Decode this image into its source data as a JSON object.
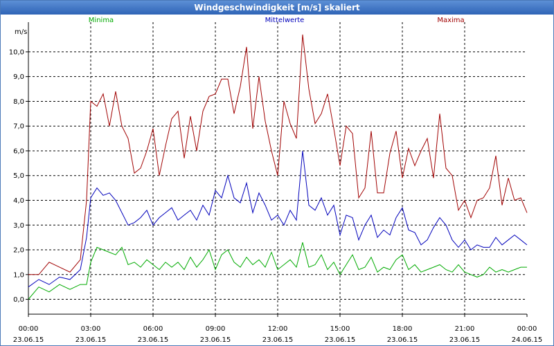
{
  "window": {
    "title": "Windgeschwindigkeit [m/s] skaliert"
  },
  "colors": {
    "min": "#00aa00",
    "avg": "#0000bb",
    "max": "#a00000",
    "grid": "#000000",
    "title_bg": "#2f64b6"
  },
  "chart_data": {
    "type": "line",
    "title": "Windgeschwindigkeit [m/s] skaliert",
    "ylabel": "m/s",
    "xlabel": "",
    "ylim": [
      -0.6,
      11.2
    ],
    "xlim": [
      0,
      24
    ],
    "y_ticks": [
      "0,0",
      "1,0",
      "2,0",
      "3,0",
      "4,0",
      "5,0",
      "6,0",
      "7,0",
      "8,0",
      "9,0",
      "10,0"
    ],
    "y_tick_values": [
      0,
      1,
      2,
      3,
      4,
      5,
      6,
      7,
      8,
      9,
      10
    ],
    "x_ticks": [
      {
        "time": "00:00",
        "date": "23.06.15",
        "hour": 0
      },
      {
        "time": "03:00",
        "date": "23.06.15",
        "hour": 3
      },
      {
        "time": "06:00",
        "date": "23.06.15",
        "hour": 6
      },
      {
        "time": "09:00",
        "date": "23.06.15",
        "hour": 9
      },
      {
        "time": "12:00",
        "date": "23.06.15",
        "hour": 12
      },
      {
        "time": "15:00",
        "date": "23.06.15",
        "hour": 15
      },
      {
        "time": "18:00",
        "date": "23.06.15",
        "hour": 18
      },
      {
        "time": "21:00",
        "date": "23.06.15",
        "hour": 21
      },
      {
        "time": "00:00",
        "date": "24.06.15",
        "hour": 24
      }
    ],
    "grid": true,
    "series": [
      {
        "name": "Minima",
        "key": "min",
        "x": [
          0,
          0.5,
          1,
          1.5,
          2,
          2.5,
          2.8,
          3,
          3.3,
          3.6,
          3.9,
          4.2,
          4.5,
          4.8,
          5.1,
          5.4,
          5.7,
          6,
          6.3,
          6.6,
          6.9,
          7.2,
          7.5,
          7.8,
          8.1,
          8.4,
          8.7,
          9,
          9.3,
          9.6,
          9.9,
          10.2,
          10.5,
          10.8,
          11.1,
          11.4,
          11.7,
          12,
          12.3,
          12.6,
          12.9,
          13.2,
          13.5,
          13.8,
          14.1,
          14.4,
          14.7,
          15,
          15.3,
          15.6,
          15.9,
          16.2,
          16.5,
          16.8,
          17.1,
          17.4,
          17.7,
          18,
          18.3,
          18.6,
          18.9,
          19.2,
          19.5,
          19.8,
          20.1,
          20.4,
          20.7,
          21,
          21.3,
          21.6,
          21.9,
          22.2,
          22.5,
          22.8,
          23.1,
          23.4,
          23.7,
          24
        ],
        "values": [
          0.0,
          0.5,
          0.3,
          0.6,
          0.4,
          0.6,
          0.6,
          1.5,
          2.1,
          2.0,
          1.9,
          1.8,
          2.1,
          1.4,
          1.5,
          1.3,
          1.6,
          1.4,
          1.2,
          1.5,
          1.3,
          1.5,
          1.2,
          1.7,
          1.3,
          1.6,
          2.0,
          1.2,
          1.8,
          2.0,
          1.5,
          1.3,
          1.7,
          1.4,
          1.6,
          1.3,
          1.9,
          1.2,
          1.4,
          1.6,
          1.3,
          2.3,
          1.3,
          1.4,
          1.8,
          1.2,
          1.5,
          1.0,
          1.4,
          1.8,
          1.2,
          1.3,
          1.7,
          1.1,
          1.3,
          1.2,
          1.6,
          1.8,
          1.2,
          1.4,
          1.1,
          1.2,
          1.3,
          1.4,
          1.2,
          1.1,
          1.4,
          1.1,
          1.0,
          0.9,
          1.0,
          1.3,
          1.1,
          1.2,
          1.1,
          1.2,
          1.3,
          1.3
        ]
      },
      {
        "name": "Mittelwerte",
        "key": "avg",
        "x": [
          0,
          0.5,
          1,
          1.5,
          2,
          2.5,
          2.8,
          3,
          3.3,
          3.6,
          3.9,
          4.2,
          4.5,
          4.8,
          5.1,
          5.4,
          5.7,
          6,
          6.3,
          6.6,
          6.9,
          7.2,
          7.5,
          7.8,
          8.1,
          8.4,
          8.7,
          9,
          9.3,
          9.6,
          9.9,
          10.2,
          10.5,
          10.8,
          11.1,
          11.4,
          11.7,
          12,
          12.3,
          12.6,
          12.9,
          13.2,
          13.5,
          13.8,
          14.1,
          14.4,
          14.7,
          15,
          15.3,
          15.6,
          15.9,
          16.2,
          16.5,
          16.8,
          17.1,
          17.4,
          17.7,
          18,
          18.3,
          18.6,
          18.9,
          19.2,
          19.5,
          19.8,
          20.1,
          20.4,
          20.7,
          21,
          21.3,
          21.6,
          21.9,
          22.2,
          22.5,
          22.8,
          23.1,
          23.4,
          23.7,
          24
        ],
        "values": [
          0.5,
          0.8,
          0.6,
          0.9,
          0.8,
          1.2,
          2.5,
          4.1,
          4.5,
          4.2,
          4.3,
          4.0,
          3.5,
          3.0,
          3.1,
          3.3,
          3.6,
          3.0,
          3.3,
          3.5,
          3.7,
          3.2,
          3.4,
          3.6,
          3.2,
          3.8,
          3.4,
          4.4,
          4.1,
          5.0,
          4.1,
          3.9,
          4.7,
          3.5,
          4.3,
          3.8,
          3.2,
          3.4,
          3.0,
          3.6,
          3.2,
          6.0,
          3.8,
          3.6,
          4.1,
          3.4,
          3.8,
          2.6,
          3.4,
          3.3,
          2.4,
          3.0,
          3.4,
          2.5,
          2.8,
          2.6,
          3.3,
          3.7,
          2.8,
          2.7,
          2.2,
          2.4,
          2.9,
          3.3,
          3.0,
          2.4,
          2.1,
          2.4,
          2.0,
          2.2,
          2.1,
          2.1,
          2.5,
          2.2,
          2.4,
          2.6,
          2.4,
          2.2
        ]
      },
      {
        "name": "Maxima",
        "key": "max",
        "x": [
          0,
          0.5,
          1,
          1.5,
          2,
          2.5,
          2.8,
          3,
          3.3,
          3.6,
          3.9,
          4.2,
          4.5,
          4.8,
          5.1,
          5.4,
          5.7,
          6,
          6.3,
          6.6,
          6.9,
          7.2,
          7.5,
          7.8,
          8.1,
          8.4,
          8.7,
          9,
          9.3,
          9.6,
          9.9,
          10.2,
          10.5,
          10.8,
          11.1,
          11.4,
          11.7,
          12,
          12.3,
          12.6,
          12.9,
          13.2,
          13.5,
          13.8,
          14.1,
          14.4,
          14.7,
          15,
          15.3,
          15.6,
          15.9,
          16.2,
          16.5,
          16.8,
          17.1,
          17.4,
          17.7,
          18,
          18.3,
          18.6,
          18.9,
          19.2,
          19.5,
          19.8,
          20.1,
          20.4,
          20.7,
          21,
          21.3,
          21.6,
          21.9,
          22.2,
          22.5,
          22.8,
          23.1,
          23.4,
          23.7,
          24
        ],
        "values": [
          1.0,
          1.0,
          1.5,
          1.3,
          1.1,
          1.6,
          4.0,
          8.0,
          7.8,
          8.3,
          7.0,
          8.4,
          7.0,
          6.5,
          5.1,
          5.3,
          6.0,
          6.9,
          5.0,
          6.2,
          7.3,
          7.6,
          5.7,
          7.4,
          6.0,
          7.6,
          8.2,
          8.3,
          8.9,
          8.9,
          7.5,
          8.6,
          10.2,
          6.9,
          9.0,
          7.2,
          6.0,
          5.0,
          8.0,
          7.1,
          6.5,
          10.7,
          8.5,
          7.1,
          7.5,
          8.3,
          6.9,
          5.4,
          7.0,
          6.7,
          4.1,
          4.5,
          6.8,
          4.3,
          4.3,
          5.9,
          6.8,
          4.9,
          6.1,
          5.4,
          6.0,
          6.5,
          4.9,
          7.5,
          5.3,
          5.0,
          3.6,
          4.0,
          3.3,
          4.0,
          4.1,
          4.5,
          5.8,
          3.8,
          4.9,
          4.0,
          4.1,
          3.5
        ]
      }
    ]
  }
}
